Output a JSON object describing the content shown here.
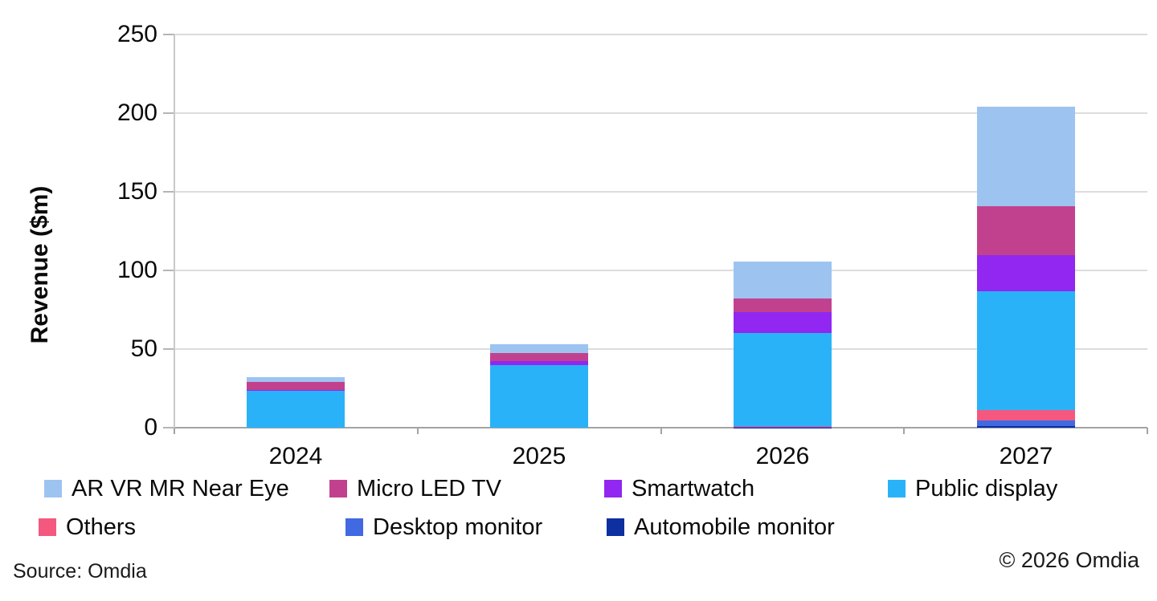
{
  "chart_data": {
    "type": "bar",
    "stacked": true,
    "title": "",
    "ylabel": "Revenue ($m)",
    "xlabel": "",
    "categories": [
      "2024",
      "2025",
      "2026",
      "2027"
    ],
    "ylim": [
      0,
      250
    ],
    "yticks": [
      0,
      50,
      100,
      150,
      200,
      250
    ],
    "grid": "horizontal",
    "legend_position": "bottom",
    "series": [
      {
        "name": "Automobile monitor",
        "color": "#0D2F9F",
        "values": [
          0,
          0,
          0.2,
          1.0
        ]
      },
      {
        "name": "Desktop monitor",
        "color": "#4169E1",
        "values": [
          0,
          0,
          0.4,
          3.6
        ]
      },
      {
        "name": "Others",
        "color": "#F5587F",
        "values": [
          0,
          0,
          0.6,
          6.6
        ]
      },
      {
        "name": "Public display",
        "color": "#2AB2F9",
        "values": [
          23.7,
          39.8,
          58.8,
          75.4
        ]
      },
      {
        "name": "Smartwatch",
        "color": "#9127F0",
        "values": [
          0.5,
          2.6,
          13.3,
          23.0
        ]
      },
      {
        "name": "Micro LED TV",
        "color": "#C2418F",
        "values": [
          4.7,
          5.1,
          8.8,
          31.4
        ]
      },
      {
        "name": "AR VR MR Near Eye",
        "color": "#9DC3F0",
        "values": [
          3.4,
          5.6,
          23.5,
          63.3
        ]
      }
    ]
  },
  "legend": {
    "rows": [
      [
        {
          "label": "AR VR MR Near Eye",
          "color": "#9DC3F0"
        },
        {
          "label": "Micro LED TV",
          "color": "#C2418F"
        },
        {
          "label": "Smartwatch",
          "color": "#9127F0"
        },
        {
          "label": "Public display",
          "color": "#2AB2F9"
        }
      ],
      [
        {
          "label": "Others",
          "color": "#F5587F"
        },
        {
          "label": "Desktop monitor",
          "color": "#4169E1"
        },
        {
          "label": "Automobile monitor",
          "color": "#0D2F9F"
        }
      ]
    ]
  },
  "footer": {
    "source": "Source: Omdia",
    "copyright": "© 2026 Omdia"
  }
}
